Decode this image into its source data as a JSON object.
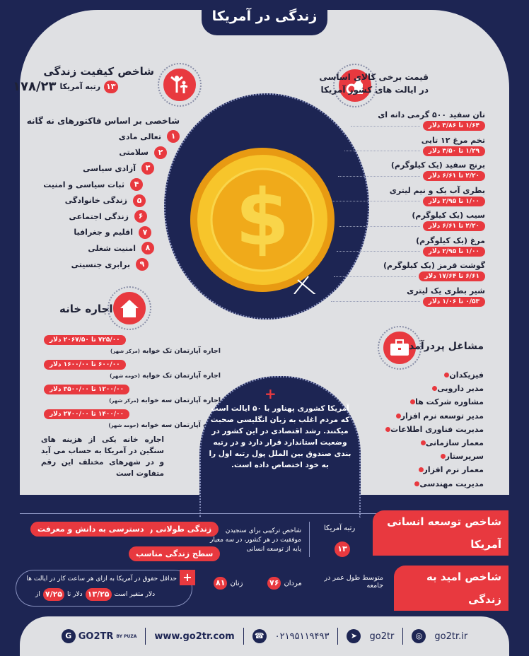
{
  "title": "زندگی در آمریکا",
  "quality": {
    "title": "شاخص کیفیت زندگی",
    "score": "۱۷۸/۲۳",
    "rank_label": "رتبه آمریکا",
    "rank": "۱۳",
    "subtitle": "شاخصی بر اساس فاکتورهای نه گانه",
    "factors": [
      {
        "n": "۱",
        "label": "تعالی مادی"
      },
      {
        "n": "۲",
        "label": "سلامتی"
      },
      {
        "n": "۳",
        "label": "آزادی سیاسی"
      },
      {
        "n": "۴",
        "label": "ثبات سیاسی و امنیت"
      },
      {
        "n": "۵",
        "label": "زندگی خانوادگی"
      },
      {
        "n": "۶",
        "label": "زندگی اجتماعی"
      },
      {
        "n": "۷",
        "label": "اقلیم و جغرافیا"
      },
      {
        "n": "۸",
        "label": "امنیت شغلی"
      },
      {
        "n": "۹",
        "label": "برابری جنسیتی"
      }
    ],
    "icon": "family-icon"
  },
  "prices": {
    "title_line1": "قیمت برخی کالای اساسی",
    "title_line2": "در ایالت های کشور آمریکا",
    "icon": "grocery-icon",
    "items": [
      {
        "label": "نان سفید ۵۰۰ گرمی دانه ای",
        "range": "۱/۶۴ تا ۳/۸۶ دلار"
      },
      {
        "label": "تخم مرغ ۱۲ تایی",
        "range": "۱/۲۹ تا ۳/۵۰ دلار"
      },
      {
        "label": "برنج سفید (یک کیلوگرم)",
        "range": "۲/۲۰ تا ۶/۶۱ دلار"
      },
      {
        "label": "بطری آب یک و نیم لیتری",
        "range": "۱/۰۰ تا ۲/۹۵ دلار"
      },
      {
        "label": "سیب (یک کیلوگرم)",
        "range": "۲/۲۰ تا ۶/۶۱ دلار"
      },
      {
        "label": "مرغ (یک کیلوگرم)",
        "range": "۱/۰۰ تا ۲/۹۵ دلار"
      },
      {
        "label": "گوشت قرمز (یک کیلوگرم)",
        "range": "۶/۶۱ تا ۱۷/۶۴ دلار"
      },
      {
        "label": "شیر بطری یک لیتری",
        "range": "۰/۵۳ تا ۱/۰۶ دلار"
      }
    ]
  },
  "rent": {
    "title": "اجاره خانه",
    "icon": "house-icon",
    "items": [
      {
        "label": "اجاره آپارتمان تک خوابه",
        "note": "(مرکز شهر)",
        "range": "۷۲۵/۰۰ تا ۲۰۶۷/۵۰ دلار"
      },
      {
        "label": "اجاره آپارتمان تک خوابه",
        "note": "(حومه شهر)",
        "range": "۶۰۰/۰۰ تا ۱۶۰۰/۰۰ دلار"
      },
      {
        "label": "اجاره آپارتمان سه خوابه",
        "note": "(مرکز شهر)",
        "range": "۱۲۰۰/۰۰ تا ۳۵۰۰/۰۰ دلار"
      },
      {
        "label": "اجاره آپارتمان سه خوابه",
        "note": "(حومه شهر)",
        "range": "۱۴۰۰/۰۰ تا ۲۷۰۰/۰۰ دلار"
      }
    ],
    "desc": "اجاره خانه یکی از هزینه های سنگین در آمریکا به حساب می آید و در شهرهای مختلف این رقم متفاوت است"
  },
  "about": "آمریکا کشوری پهناور با ۵۰ ایالت است که مردم اغلب به زبان انگلیسی صحبت میکنند. رشد اقتصادی در این کشور در وضعیت استاندارد قرار دارد و در رتبه بندی صندوق بین الملل پول رتبه اول را به خود اختصاص داده است.",
  "jobs": {
    "title": "مشاغل پردرآمد",
    "icon": "briefcase-icon",
    "items": [
      "فیزیکدان",
      "مدیر دارویی",
      "مشاوره شرکت ها",
      "مدیر توسعه نرم افزار",
      "مدیریت فناوری اطلاعات",
      "معمار سازمانی",
      "سرپرستار",
      "معمار نرم افزار",
      "مدیریت مهندسی"
    ]
  },
  "hdi": {
    "title": "شاخص توسعه انسانی آمریکا",
    "rank_label": "رتبه آمریکا",
    "rank": "۱۳",
    "desc": "شاخص ترکیبی برای سنجیدن موفقیت در هر کشور، در سه معیار پایه از توسعه انسانی",
    "criteria": [
      "زندگی طولانی و سالم",
      "دسترسی به دانش و معرفت",
      "سطح زندگی مناسب"
    ]
  },
  "life": {
    "title": "شاخص امید به زندگی",
    "desc": "متوسط طول عمر در جامعه",
    "men_label": "مردان",
    "men": "۷۶",
    "women_label": "زنان",
    "women": "۸۱"
  },
  "wage": {
    "text1": "حداقل حقوق در آمریکا به ازای هر ساعت کار در ایالت ها",
    "from_label": "از",
    "min": "۷/۲۵",
    "mid": "دلار تا",
    "max": "۱۳/۲۵",
    "end": "دلار متغیر است"
  },
  "footer": {
    "brand": "GO2TR",
    "tagline": "BY PUZA",
    "website": "www.go2tr.com",
    "phone": "۰۲۱۹۵۱۱۹۴۹۳",
    "telegram": "go2tr",
    "instagram": "go2tr.ir"
  },
  "colors": {
    "navy": "#1d2553",
    "red": "#e8393f",
    "panel": "#dfe0e3",
    "gold": "#f5b81c"
  }
}
